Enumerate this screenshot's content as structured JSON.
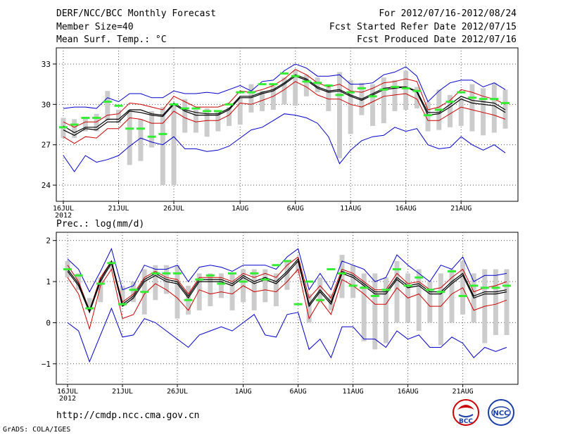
{
  "header": {
    "title": "DERF/NCC/BCC Monthly Forecast",
    "member_size": "Member Size=40",
    "variable": "Mean Surf. Temp.: °C",
    "period": "For 2012/07/16-2012/08/24",
    "fcst_started": "Fcst Started Refer Date 2012/07/15",
    "fcst_produced": "Fcst Produced Date 2012/07/16"
  },
  "footer": {
    "url": "http://cmdp.ncc.cma.gov.cn",
    "grads": "GrADS: COLA/IGES",
    "logo_left": "BCC",
    "logo_right": "NCC"
  },
  "colors": {
    "blue": "#0000cc",
    "red": "#cc0000",
    "black": "#000000",
    "green": "#33ee33",
    "bar": "#cccccc",
    "grid": "#555555"
  },
  "chart_data": [
    {
      "type": "line",
      "title": "Mean Surf. Temp.: °C",
      "ylabel": "°C",
      "ylim": [
        22.8,
        34.2
      ],
      "yticks": [
        "24",
        "27",
        "30",
        "33"
      ],
      "xticks": [
        "16JUL",
        "21JUL",
        "26JUL",
        "1AUG",
        "6AUG",
        "11AUG",
        "16AUG",
        "21AUG"
      ],
      "xtick_days": [
        0,
        5,
        10,
        16,
        21,
        26,
        31,
        36
      ],
      "year_label": "2012",
      "series": [
        {
          "name": "max",
          "color": "blue",
          "values": [
            29.7,
            29.8,
            29.8,
            29.7,
            30.5,
            30.2,
            30.8,
            30.8,
            30.5,
            30.5,
            31.0,
            30.8,
            30.8,
            30.9,
            30.8,
            31.1,
            31.4,
            31.0,
            31.7,
            31.8,
            32.5,
            33.0,
            32.7,
            32.1,
            32.1,
            32.2,
            31.5,
            31.5,
            31.6,
            32.2,
            32.4,
            32.8,
            32.1,
            30.2,
            31.0,
            31.6,
            31.8,
            31.8,
            31.3,
            31.6,
            31.1
          ]
        },
        {
          "name": "upper",
          "color": "red",
          "values": [
            28.7,
            28.3,
            28.7,
            28.7,
            29.2,
            29.3,
            30.1,
            30.0,
            29.8,
            29.6,
            30.6,
            30.2,
            29.8,
            29.8,
            29.8,
            30.1,
            31.0,
            30.9,
            31.1,
            31.4,
            31.9,
            32.6,
            32.2,
            31.6,
            31.3,
            31.5,
            31.0,
            30.9,
            31.2,
            31.6,
            31.7,
            31.9,
            31.7,
            29.6,
            29.8,
            30.3,
            31.1,
            30.9,
            30.6,
            30.4,
            30.0
          ]
        },
        {
          "name": "mean",
          "color": "black",
          "values": [
            28.1,
            27.7,
            28.2,
            28.1,
            28.7,
            28.7,
            29.5,
            29.4,
            29.2,
            29.1,
            30.0,
            29.5,
            29.2,
            29.2,
            29.2,
            29.6,
            30.5,
            30.5,
            30.8,
            31.0,
            31.5,
            32.1,
            31.8,
            31.2,
            30.9,
            31.0,
            30.6,
            30.3,
            30.7,
            31.1,
            31.2,
            31.3,
            30.9,
            29.2,
            29.3,
            29.8,
            30.4,
            30.1,
            30.0,
            29.9,
            29.4
          ]
        },
        {
          "name": "ensemble",
          "color": "black",
          "values": [
            28.4,
            27.9,
            28.3,
            28.3,
            28.9,
            28.9,
            29.6,
            29.6,
            29.3,
            29.2,
            30.1,
            29.6,
            29.4,
            29.3,
            29.3,
            29.7,
            30.6,
            30.6,
            30.9,
            31.1,
            31.6,
            32.2,
            31.9,
            31.3,
            31.0,
            31.1,
            30.7,
            30.4,
            30.8,
            31.2,
            31.3,
            31.3,
            31.0,
            29.4,
            29.4,
            30.0,
            30.6,
            30.3,
            30.2,
            30.1,
            29.6
          ]
        },
        {
          "name": "lower",
          "color": "red",
          "values": [
            27.6,
            27.1,
            27.6,
            27.5,
            28.2,
            28.2,
            29.0,
            28.9,
            28.6,
            28.6,
            29.5,
            29.0,
            28.7,
            28.8,
            28.8,
            29.2,
            30.1,
            30.0,
            30.3,
            30.6,
            31.1,
            31.7,
            31.3,
            30.7,
            30.4,
            30.4,
            30.0,
            29.8,
            30.2,
            30.6,
            30.7,
            30.8,
            30.4,
            28.8,
            28.8,
            29.3,
            29.8,
            29.6,
            29.4,
            29.2,
            28.9
          ]
        },
        {
          "name": "min",
          "color": "blue",
          "values": [
            26.2,
            25.0,
            26.2,
            25.7,
            25.9,
            26.2,
            26.9,
            27.5,
            27.2,
            27.0,
            27.6,
            26.7,
            26.7,
            26.5,
            26.6,
            26.9,
            27.5,
            28.1,
            28.3,
            28.8,
            29.3,
            29.2,
            29.0,
            28.6,
            27.6,
            25.6,
            26.6,
            27.3,
            27.6,
            27.7,
            28.3,
            28.0,
            28.2,
            27.0,
            26.7,
            26.8,
            27.6,
            27.0,
            26.6,
            27.0,
            26.4
          ]
        }
      ],
      "bars": {
        "name": "observed range",
        "low": [
          27.5,
          27.5,
          28.0,
          28.0,
          28.8,
          28.6,
          25.5,
          25.8,
          26.8,
          24.0,
          24.0,
          27.9,
          27.9,
          27.6,
          28.0,
          28.4,
          28.5,
          29.4,
          29.5,
          29.6,
          30.0,
          29.9,
          30.6,
          30.9,
          29.5,
          26.0,
          27.8,
          29.2,
          28.4,
          28.6,
          29.5,
          29.6,
          29.7,
          28.0,
          28.1,
          28.3,
          28.4,
          28.0,
          27.7,
          27.9,
          28.2
        ],
        "high": [
          29.0,
          28.9,
          29.0,
          29.3,
          31.0,
          29.6,
          29.6,
          28.9,
          29.5,
          29.8,
          30.0,
          30.4,
          29.6,
          29.7,
          29.5,
          29.8,
          30.5,
          31.5,
          31.0,
          31.4,
          32.0,
          32.5,
          32.2,
          32.0,
          31.5,
          32.4,
          31.8,
          31.6,
          31.5,
          32.0,
          31.8,
          32.5,
          31.3,
          30.2,
          31.1,
          30.7,
          30.5,
          31.5,
          31.2,
          31.6,
          31.1
        ]
      },
      "observed": [
        28.3,
        28.5,
        29.0,
        29.0,
        30.2,
        29.9,
        28.2,
        28.2,
        27.6,
        27.8,
        30.0,
        29.7,
        29.7,
        29.5,
        29.5,
        30.0,
        30.9,
        30.9,
        31.5,
        31.5,
        32.3,
        32.1,
        31.7,
        31.6,
        31.4,
        30.7,
        30.9,
        31.2,
        30.6,
        31.1,
        31.3,
        31.2,
        31.0,
        29.2,
        29.6,
        30.2,
        30.9,
        30.5,
        30.4,
        30.4,
        30.1
      ]
    },
    {
      "type": "line",
      "title": "Prec.: log(mm/d)",
      "ylabel": "log(mm/d)",
      "ylim": [
        -1.5,
        2.2
      ],
      "yticks": [
        "−1",
        "0",
        "1",
        "2"
      ],
      "xticks": [
        "16JUL",
        "21JUL",
        "26JUL",
        "1AUG",
        "6AUG",
        "11AUG",
        "16AUG",
        "21AUG"
      ],
      "xtick_days": [
        0,
        5,
        10,
        16,
        21,
        26,
        31,
        36
      ],
      "year_label": "2012",
      "series": [
        {
          "name": "max",
          "color": "blue",
          "values": [
            1.55,
            1.3,
            0.75,
            1.25,
            1.8,
            0.8,
            0.9,
            1.4,
            1.3,
            1.3,
            1.4,
            1.0,
            1.35,
            1.4,
            1.35,
            1.25,
            1.4,
            1.4,
            1.4,
            1.3,
            1.6,
            1.8,
            0.8,
            1.2,
            0.8,
            1.5,
            1.4,
            1.3,
            1.0,
            1.1,
            1.65,
            1.4,
            1.2,
            1.0,
            1.4,
            1.3,
            1.6,
            1.0,
            1.15,
            1.15,
            1.2
          ]
        },
        {
          "name": "upper",
          "color": "red",
          "values": [
            1.4,
            1.0,
            0.3,
            1.1,
            1.5,
            0.5,
            0.7,
            1.1,
            1.25,
            1.1,
            1.05,
            0.7,
            1.1,
            1.1,
            1.1,
            1.0,
            1.2,
            1.1,
            1.2,
            1.1,
            1.4,
            1.6,
            0.6,
            0.9,
            0.6,
            1.3,
            1.2,
            1.0,
            0.8,
            0.8,
            1.2,
            0.95,
            1.0,
            0.8,
            0.85,
            1.1,
            1.3,
            0.75,
            0.85,
            0.9,
            1.0
          ]
        },
        {
          "name": "mean",
          "color": "black",
          "values": [
            1.25,
            0.9,
            0.25,
            1.0,
            1.45,
            0.4,
            0.6,
            1.0,
            1.15,
            1.0,
            0.95,
            0.6,
            1.0,
            1.0,
            1.0,
            0.9,
            1.1,
            0.95,
            1.05,
            0.95,
            1.2,
            1.5,
            0.4,
            0.75,
            0.45,
            1.2,
            1.1,
            0.9,
            0.7,
            0.7,
            1.05,
            0.85,
            0.9,
            0.7,
            0.7,
            0.95,
            1.15,
            0.6,
            0.7,
            0.7,
            0.75
          ]
        },
        {
          "name": "ensemble",
          "color": "black",
          "values": [
            1.3,
            0.95,
            0.3,
            1.05,
            1.5,
            0.45,
            0.65,
            1.05,
            1.2,
            1.05,
            1.0,
            0.65,
            1.05,
            1.05,
            1.05,
            0.95,
            1.15,
            1.0,
            1.1,
            1.0,
            1.25,
            1.55,
            0.45,
            0.8,
            0.5,
            1.25,
            1.15,
            0.95,
            0.75,
            0.75,
            1.1,
            0.9,
            0.95,
            0.75,
            0.75,
            1.0,
            1.2,
            0.65,
            0.75,
            0.75,
            0.8
          ]
        },
        {
          "name": "lower",
          "color": "red",
          "values": [
            1.1,
            0.7,
            -0.15,
            0.9,
            1.3,
            0.1,
            0.2,
            0.7,
            0.95,
            0.8,
            0.6,
            0.3,
            0.8,
            0.7,
            0.75,
            0.7,
            0.9,
            0.75,
            0.8,
            0.75,
            1.0,
            1.3,
            0.1,
            0.55,
            0.2,
            1.05,
            0.9,
            0.7,
            0.45,
            0.45,
            0.85,
            0.6,
            0.7,
            0.4,
            0.4,
            0.7,
            0.85,
            0.3,
            0.4,
            0.45,
            0.55
          ]
        },
        {
          "name": "min",
          "color": "blue",
          "values": [
            0.0,
            -0.2,
            -0.95,
            -0.3,
            0.35,
            -0.35,
            -0.3,
            0.1,
            0.0,
            -0.2,
            -0.4,
            -0.6,
            -0.3,
            -0.2,
            -0.1,
            -0.2,
            0.0,
            0.2,
            -0.3,
            -0.35,
            0.2,
            0.25,
            -0.65,
            -0.4,
            -0.85,
            -0.1,
            -0.1,
            -0.4,
            -0.4,
            -0.6,
            -0.2,
            -0.4,
            -0.3,
            -0.6,
            -0.6,
            -0.35,
            -0.5,
            -0.85,
            -0.6,
            -0.7,
            -0.6
          ]
        }
      ],
      "bars": {
        "name": "observed range",
        "low": [
          1.1,
          0.8,
          0.3,
          0.5,
          1.3,
          0.4,
          0.5,
          0.2,
          0.55,
          0.7,
          0.1,
          0.2,
          0.3,
          0.4,
          0.6,
          0.3,
          0.5,
          0.3,
          0.5,
          0.4,
          0.8,
          1.2,
          0.0,
          0.5,
          0.3,
          0.6,
          0.6,
          -0.45,
          -0.65,
          -0.5,
          0.0,
          0.0,
          -0.2,
          0.0,
          -0.55,
          0.0,
          0.2,
          0.0,
          -0.5,
          -0.3,
          -0.3
        ],
        "high": [
          1.5,
          1.2,
          0.6,
          1.1,
          1.5,
          0.9,
          1.0,
          1.3,
          1.4,
          1.4,
          1.4,
          0.9,
          1.2,
          1.2,
          1.2,
          1.2,
          1.3,
          1.3,
          1.3,
          1.2,
          1.5,
          1.5,
          0.7,
          1.1,
          0.7,
          1.65,
          1.4,
          1.2,
          1.2,
          1.1,
          1.5,
          1.2,
          1.3,
          1.0,
          1.2,
          1.3,
          1.5,
          1.2,
          1.3,
          1.3,
          1.3
        ]
      },
      "observed": [
        1.3,
        1.15,
        0.35,
        0.95,
        1.45,
        0.45,
        0.8,
        0.75,
        1.2,
        1.2,
        1.2,
        0.55,
        1.05,
        1.15,
        0.95,
        1.2,
        1.0,
        1.2,
        1.05,
        1.4,
        1.5,
        0.45,
        1.0,
        0.55,
        1.3,
        1.2,
        0.9,
        0.85,
        0.65,
        0.8,
        1.3,
        0.9,
        1.1,
        0.8,
        0.75,
        1.25,
        0.65,
        0.9,
        0.85,
        0.85,
        0.9
      ]
    }
  ]
}
